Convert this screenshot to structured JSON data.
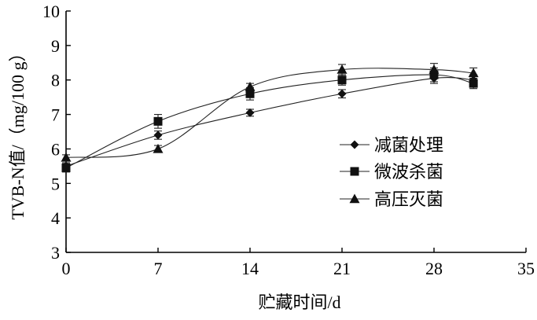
{
  "chart_data": {
    "type": "line",
    "title": "",
    "xlabel": "贮藏时间/d",
    "ylabel": "TVB-N值/（mg/100 g）",
    "xlim": [
      0,
      35
    ],
    "ylim": [
      3,
      10
    ],
    "xticks": [
      "0",
      "7",
      "14",
      "21",
      "28",
      "35"
    ],
    "yticks": [
      "3",
      "4",
      "5",
      "6",
      "7",
      "8",
      "9",
      "10"
    ],
    "grid": false,
    "legend_position": "right-middle",
    "series": [
      {
        "name": "减菌处理",
        "marker": "diamond",
        "x": [
          0,
          7,
          14,
          21,
          28,
          31
        ],
        "y": [
          5.5,
          6.4,
          7.05,
          7.6,
          8.05,
          8.0
        ],
        "err": [
          0.1,
          0.12,
          0.1,
          0.12,
          0.15,
          0.15
        ]
      },
      {
        "name": "微波杀菌",
        "marker": "square",
        "x": [
          0,
          7,
          14,
          21,
          28,
          31
        ],
        "y": [
          5.45,
          6.8,
          7.6,
          8.0,
          8.15,
          7.9
        ],
        "err": [
          0.12,
          0.2,
          0.18,
          0.15,
          0.2,
          0.15
        ]
      },
      {
        "name": "高压灭菌",
        "marker": "triangle",
        "x": [
          0,
          7,
          14,
          21,
          28,
          31
        ],
        "y": [
          5.75,
          6.0,
          7.8,
          8.3,
          8.3,
          8.2
        ],
        "err": [
          0.08,
          0.1,
          0.1,
          0.15,
          0.18,
          0.15
        ]
      }
    ]
  }
}
